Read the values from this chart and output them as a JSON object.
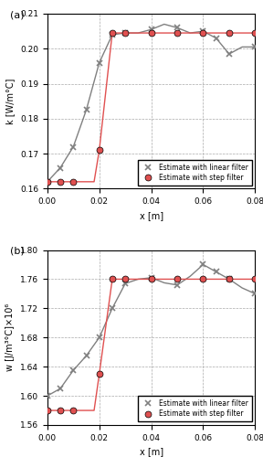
{
  "subplot_a": {
    "label": "(a)",
    "ylabel": "k [W/m°C]",
    "xlabel": "x [m]",
    "ylim": [
      0.16,
      0.21
    ],
    "yticks": [
      0.16,
      0.17,
      0.18,
      0.19,
      0.2,
      0.21
    ],
    "xlim": [
      0,
      0.08
    ],
    "xticks": [
      0,
      0.02,
      0.04,
      0.06,
      0.08
    ],
    "linear_x": [
      0.0,
      0.005,
      0.01,
      0.015,
      0.02,
      0.025,
      0.03,
      0.035,
      0.04,
      0.045,
      0.05,
      0.055,
      0.06,
      0.065,
      0.07,
      0.075,
      0.08
    ],
    "linear_y": [
      0.162,
      0.166,
      0.172,
      0.1825,
      0.196,
      0.204,
      0.2045,
      0.2045,
      0.2055,
      0.207,
      0.206,
      0.2045,
      0.205,
      0.203,
      0.1985,
      0.2005,
      0.2005
    ],
    "step_x": [
      0.0,
      0.005,
      0.01,
      0.015,
      0.018,
      0.02,
      0.025,
      0.03,
      0.035,
      0.04,
      0.045,
      0.05,
      0.055,
      0.06,
      0.065,
      0.07,
      0.075,
      0.08
    ],
    "step_y": [
      0.162,
      0.162,
      0.162,
      0.162,
      0.162,
      0.171,
      0.2045,
      0.2045,
      0.2045,
      0.2045,
      0.2045,
      0.2045,
      0.2045,
      0.2045,
      0.2045,
      0.2045,
      0.2045,
      0.2045
    ],
    "linear_marker_x": [
      0.0,
      0.005,
      0.01,
      0.015,
      0.02,
      0.025,
      0.03,
      0.04,
      0.05,
      0.06,
      0.065,
      0.07,
      0.08
    ],
    "linear_marker_y": [
      0.162,
      0.166,
      0.172,
      0.1825,
      0.196,
      0.204,
      0.2045,
      0.2055,
      0.206,
      0.205,
      0.203,
      0.1985,
      0.2005
    ],
    "step_marker_x": [
      0.0,
      0.005,
      0.01,
      0.02,
      0.025,
      0.03,
      0.04,
      0.05,
      0.06,
      0.07,
      0.08
    ],
    "step_marker_y": [
      0.162,
      0.162,
      0.162,
      0.171,
      0.2045,
      0.2045,
      0.2045,
      0.2045,
      0.2045,
      0.2045,
      0.2045
    ]
  },
  "subplot_b": {
    "label": "(b)",
    "ylabel": "w [J/m³°C]×10⁶",
    "xlabel": "x [m]",
    "ylim": [
      1.56,
      1.8
    ],
    "yticks": [
      1.56,
      1.6,
      1.64,
      1.68,
      1.72,
      1.76,
      1.8
    ],
    "xlim": [
      0,
      0.08
    ],
    "xticks": [
      0,
      0.02,
      0.04,
      0.06,
      0.08
    ],
    "linear_x": [
      0.0,
      0.005,
      0.01,
      0.015,
      0.02,
      0.025,
      0.03,
      0.035,
      0.04,
      0.045,
      0.05,
      0.055,
      0.06,
      0.065,
      0.07,
      0.075,
      0.08
    ],
    "linear_y": [
      1.6,
      1.61,
      1.635,
      1.655,
      1.68,
      1.72,
      1.754,
      1.76,
      1.762,
      1.755,
      1.752,
      1.764,
      1.78,
      1.77,
      1.76,
      1.748,
      1.74
    ],
    "step_x": [
      0.0,
      0.005,
      0.01,
      0.015,
      0.018,
      0.02,
      0.025,
      0.03,
      0.035,
      0.04,
      0.045,
      0.05,
      0.055,
      0.06,
      0.065,
      0.07,
      0.075,
      0.08
    ],
    "step_y": [
      1.58,
      1.58,
      1.58,
      1.58,
      1.58,
      1.63,
      1.76,
      1.76,
      1.76,
      1.76,
      1.76,
      1.76,
      1.76,
      1.76,
      1.76,
      1.76,
      1.76,
      1.76
    ],
    "linear_marker_x": [
      0.0,
      0.005,
      0.01,
      0.015,
      0.02,
      0.025,
      0.03,
      0.04,
      0.05,
      0.06,
      0.065,
      0.07,
      0.08
    ],
    "linear_marker_y": [
      1.6,
      1.61,
      1.635,
      1.655,
      1.68,
      1.72,
      1.754,
      1.762,
      1.752,
      1.78,
      1.77,
      1.76,
      1.74
    ],
    "step_marker_x": [
      0.0,
      0.005,
      0.01,
      0.02,
      0.025,
      0.03,
      0.04,
      0.05,
      0.06,
      0.07,
      0.08
    ],
    "step_marker_y": [
      1.58,
      1.58,
      1.58,
      1.63,
      1.76,
      1.76,
      1.76,
      1.76,
      1.76,
      1.76,
      1.76
    ]
  },
  "linear_color": "#808080",
  "step_color": "#e05050",
  "linear_label": "Estimate with linear filter",
  "step_label": "Estimate with step filter"
}
